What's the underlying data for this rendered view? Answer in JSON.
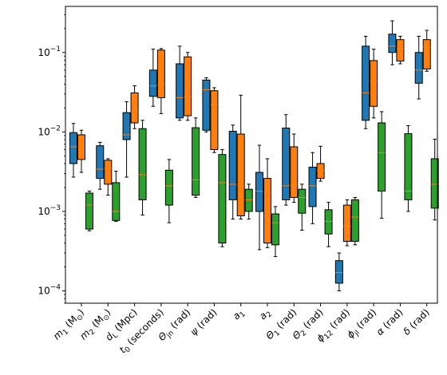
{
  "chart_data": {
    "type": "box",
    "yscale": "log",
    "ylim": [
      7e-05,
      0.38
    ],
    "ytick_values": [
      0.0001,
      0.001,
      0.01,
      0.1
    ],
    "ytick_labels": [
      "10^-4",
      "10^-3",
      "10^-2",
      "10^-1"
    ],
    "categories": [
      {
        "base": "m",
        "sub": "1",
        "after": " (M",
        "sub2": "⊙",
        "end": ")"
      },
      {
        "base": "m",
        "sub": "2",
        "after": " (M",
        "sub2": "⊙",
        "end": ")"
      },
      {
        "base": "d",
        "sub": "L",
        "after": " (Mpc)"
      },
      {
        "base": "t",
        "sub": "0",
        "after": " (seconds)"
      },
      {
        "base": "Θ",
        "sub": "jn",
        "after": " (rad)"
      },
      {
        "base": "ψ",
        "sub": "",
        "after": " (rad)"
      },
      {
        "base": "a",
        "sub": "1",
        "after": ""
      },
      {
        "base": "a",
        "sub": "2",
        "after": ""
      },
      {
        "base": "Θ",
        "sub": "1",
        "after": " (rad)"
      },
      {
        "base": "Θ",
        "sub": "2",
        "after": " (rad)"
      },
      {
        "base": "ϕ",
        "sub": "12",
        "after": " (rad)"
      },
      {
        "base": "ϕ",
        "sub": "jl",
        "after": " (rad)"
      },
      {
        "base": "α",
        "sub": "",
        "after": " (rad)"
      },
      {
        "base": "δ",
        "sub": "",
        "after": " (rad)"
      }
    ],
    "colors": {
      "blue": "#1f77b4",
      "orange": "#ff7f0e",
      "green": "#2ca02c",
      "median": "#ff7f0e",
      "axis": "#000000"
    },
    "series": [
      {
        "color": "#1f77b4",
        "stats": [
          {
            "lo": 0.0027,
            "q1": 0.004,
            "med": 0.0065,
            "q3": 0.0098,
            "hi": 0.0128
          },
          {
            "lo": 0.0019,
            "q1": 0.0026,
            "med": 0.0034,
            "q3": 0.0067,
            "hi": 0.0074
          },
          {
            "lo": 0.0027,
            "q1": 0.008,
            "med": 0.0092,
            "q3": 0.0175,
            "hi": 0.024
          },
          {
            "lo": 0.021,
            "q1": 0.028,
            "med": 0.038,
            "q3": 0.06,
            "hi": 0.11
          },
          {
            "lo": 0.014,
            "q1": 0.015,
            "med": 0.027,
            "q3": 0.072,
            "hi": 0.12
          },
          {
            "lo": 0.01,
            "q1": 0.0105,
            "med": 0.034,
            "q3": 0.045,
            "hi": 0.048
          },
          {
            "lo": 0.0008,
            "q1": 0.0014,
            "med": 0.0022,
            "q3": 0.0102,
            "hi": 0.0122
          },
          {
            "lo": 0.00033,
            "q1": 0.001,
            "med": 0.0018,
            "q3": 0.0031,
            "hi": 0.0068
          },
          {
            "lo": 0.0012,
            "q1": 0.0014,
            "med": 0.0021,
            "q3": 0.0112,
            "hi": 0.0165
          },
          {
            "lo": 0.0007,
            "q1": 0.00115,
            "med": 0.0021,
            "q3": 0.0036,
            "hi": 0.0055
          },
          {
            "lo": 0.0001,
            "q1": 0.000125,
            "med": 0.00017,
            "q3": 0.00024,
            "hi": 0.0003
          },
          {
            "lo": 0.011,
            "q1": 0.014,
            "med": 0.031,
            "q3": 0.12,
            "hi": 0.16
          },
          {
            "lo": 0.07,
            "q1": 0.1,
            "med": 0.12,
            "q3": 0.17,
            "hi": 0.25
          },
          {
            "lo": 0.026,
            "q1": 0.041,
            "med": 0.06,
            "q3": 0.1,
            "hi": 0.16
          }
        ]
      },
      {
        "color": "#ff7f0e",
        "stats": [
          {
            "lo": 0.0031,
            "q1": 0.0045,
            "med": 0.0068,
            "q3": 0.0092,
            "hi": 0.0105
          },
          {
            "lo": 0.0016,
            "q1": 0.0022,
            "med": 0.0035,
            "q3": 0.0044,
            "hi": 0.0046
          },
          {
            "lo": 0.011,
            "q1": 0.013,
            "med": 0.018,
            "q3": 0.031,
            "hi": 0.038
          },
          {
            "lo": 0.017,
            "q1": 0.027,
            "med": 0.04,
            "q3": 0.107,
            "hi": 0.112
          },
          {
            "lo": 0.014,
            "q1": 0.016,
            "med": 0.028,
            "q3": 0.088,
            "hi": 0.1
          },
          {
            "lo": 0.0055,
            "q1": 0.006,
            "med": 0.022,
            "q3": 0.033,
            "hi": 0.036
          },
          {
            "lo": 0.0008,
            "q1": 0.00088,
            "med": 0.0021,
            "q3": 0.0094,
            "hi": 0.029
          },
          {
            "lo": 0.00035,
            "q1": 0.0004,
            "med": 0.0017,
            "q3": 0.0026,
            "hi": 0.0046
          },
          {
            "lo": 0.0013,
            "q1": 0.0015,
            "med": 0.0022,
            "q3": 0.0065,
            "hi": 0.0094
          },
          {
            "lo": 0.0024,
            "q1": 0.0026,
            "med": 0.0033,
            "q3": 0.004,
            "hi": 0.0066
          },
          {
            "lo": 0.00037,
            "q1": 0.00042,
            "med": 0.00065,
            "q3": 0.0012,
            "hi": 0.0014
          },
          {
            "lo": 0.015,
            "q1": 0.021,
            "med": 0.044,
            "q3": 0.079,
            "hi": 0.11
          },
          {
            "lo": 0.072,
            "q1": 0.078,
            "med": 0.112,
            "q3": 0.145,
            "hi": 0.16
          },
          {
            "lo": 0.058,
            "q1": 0.062,
            "med": 0.117,
            "q3": 0.145,
            "hi": 0.19
          }
        ]
      },
      {
        "color": "#2ca02c",
        "stats": [
          {
            "lo": 0.00057,
            "q1": 0.0006,
            "med": 0.0012,
            "q3": 0.0017,
            "hi": 0.0018
          },
          {
            "lo": 0.00075,
            "q1": 0.00077,
            "med": 0.001,
            "q3": 0.0023,
            "hi": 0.0032
          },
          {
            "lo": 0.0009,
            "q1": 0.0014,
            "med": 0.0029,
            "q3": 0.011,
            "hi": 0.014
          },
          {
            "lo": 0.00072,
            "q1": 0.0012,
            "med": 0.0021,
            "q3": 0.0033,
            "hi": 0.0045
          },
          {
            "lo": 0.0015,
            "q1": 0.0016,
            "med": 0.0025,
            "q3": 0.0113,
            "hi": 0.015
          },
          {
            "lo": 0.00036,
            "q1": 0.0004,
            "med": 0.0023,
            "q3": 0.0052,
            "hi": 0.006
          },
          {
            "lo": 0.0008,
            "q1": 0.001,
            "med": 0.0014,
            "q3": 0.0019,
            "hi": 0.0022
          },
          {
            "lo": 0.00027,
            "q1": 0.00038,
            "med": 0.00072,
            "q3": 0.00093,
            "hi": 0.00115
          },
          {
            "lo": 0.00058,
            "q1": 0.00095,
            "med": 0.0015,
            "q3": 0.0019,
            "hi": 0.0022
          },
          {
            "lo": 0.00036,
            "q1": 0.00052,
            "med": 0.00075,
            "q3": 0.00105,
            "hi": 0.0013
          },
          {
            "lo": 0.00038,
            "q1": 0.00042,
            "med": 0.00085,
            "q3": 0.0014,
            "hi": 0.0015
          },
          {
            "lo": 0.00082,
            "q1": 0.0018,
            "med": 0.0055,
            "q3": 0.013,
            "hi": 0.018
          },
          {
            "lo": 0.001,
            "q1": 0.0014,
            "med": 0.0018,
            "q3": 0.0095,
            "hi": 0.012
          },
          {
            "lo": 0.00078,
            "q1": 0.0011,
            "med": 0.0022,
            "q3": 0.0046,
            "hi": 0.0081
          }
        ]
      }
    ]
  }
}
